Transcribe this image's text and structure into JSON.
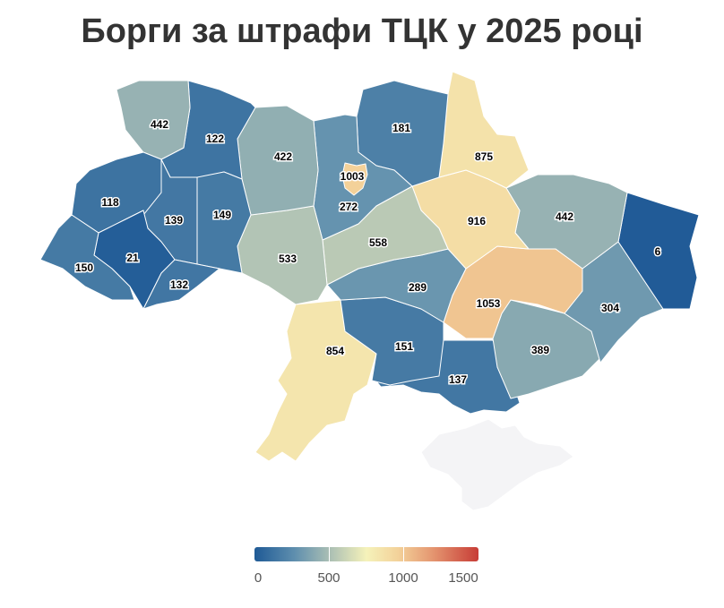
{
  "title": "Борги за штрафи ТЦК у 2025 році",
  "legend": {
    "ticks": [
      "0",
      "500",
      "1000",
      "1500"
    ],
    "min": 0,
    "max": 1500,
    "colors": [
      "#1f5a96",
      "#5f8fae",
      "#a8bdb4",
      "#f5f2ba",
      "#f3d29a",
      "#e4946f",
      "#c73c36"
    ]
  },
  "regions": [
    {
      "id": "volyn",
      "value": 442
    },
    {
      "id": "rivne",
      "value": 122
    },
    {
      "id": "zhytomyr",
      "value": 422
    },
    {
      "id": "kyiv-oblast",
      "value": 272
    },
    {
      "id": "kyiv-city",
      "value": 1003
    },
    {
      "id": "chernihiv",
      "value": 181
    },
    {
      "id": "sumy",
      "value": 875
    },
    {
      "id": "poltava",
      "value": 916
    },
    {
      "id": "kharkiv",
      "value": 442
    },
    {
      "id": "luhansk",
      "value": 6
    },
    {
      "id": "lviv",
      "value": 118
    },
    {
      "id": "ternopil",
      "value": 139
    },
    {
      "id": "khmelnytskyi",
      "value": 149
    },
    {
      "id": "ivano-frankivsk",
      "value": 21
    },
    {
      "id": "zakarpattia",
      "value": 150
    },
    {
      "id": "chernivtsi",
      "value": 132
    },
    {
      "id": "vinnytsia",
      "value": 533
    },
    {
      "id": "cherkasy",
      "value": 558
    },
    {
      "id": "kirovohrad",
      "value": 289
    },
    {
      "id": "dnipropetrovsk",
      "value": 1053
    },
    {
      "id": "donetsk",
      "value": 304
    },
    {
      "id": "zaporizhzhia",
      "value": 389
    },
    {
      "id": "mykolaiv",
      "value": 151
    },
    {
      "id": "odesa",
      "value": 854
    },
    {
      "id": "kherson",
      "value": 137
    },
    {
      "id": "crimea",
      "value": null
    }
  ]
}
